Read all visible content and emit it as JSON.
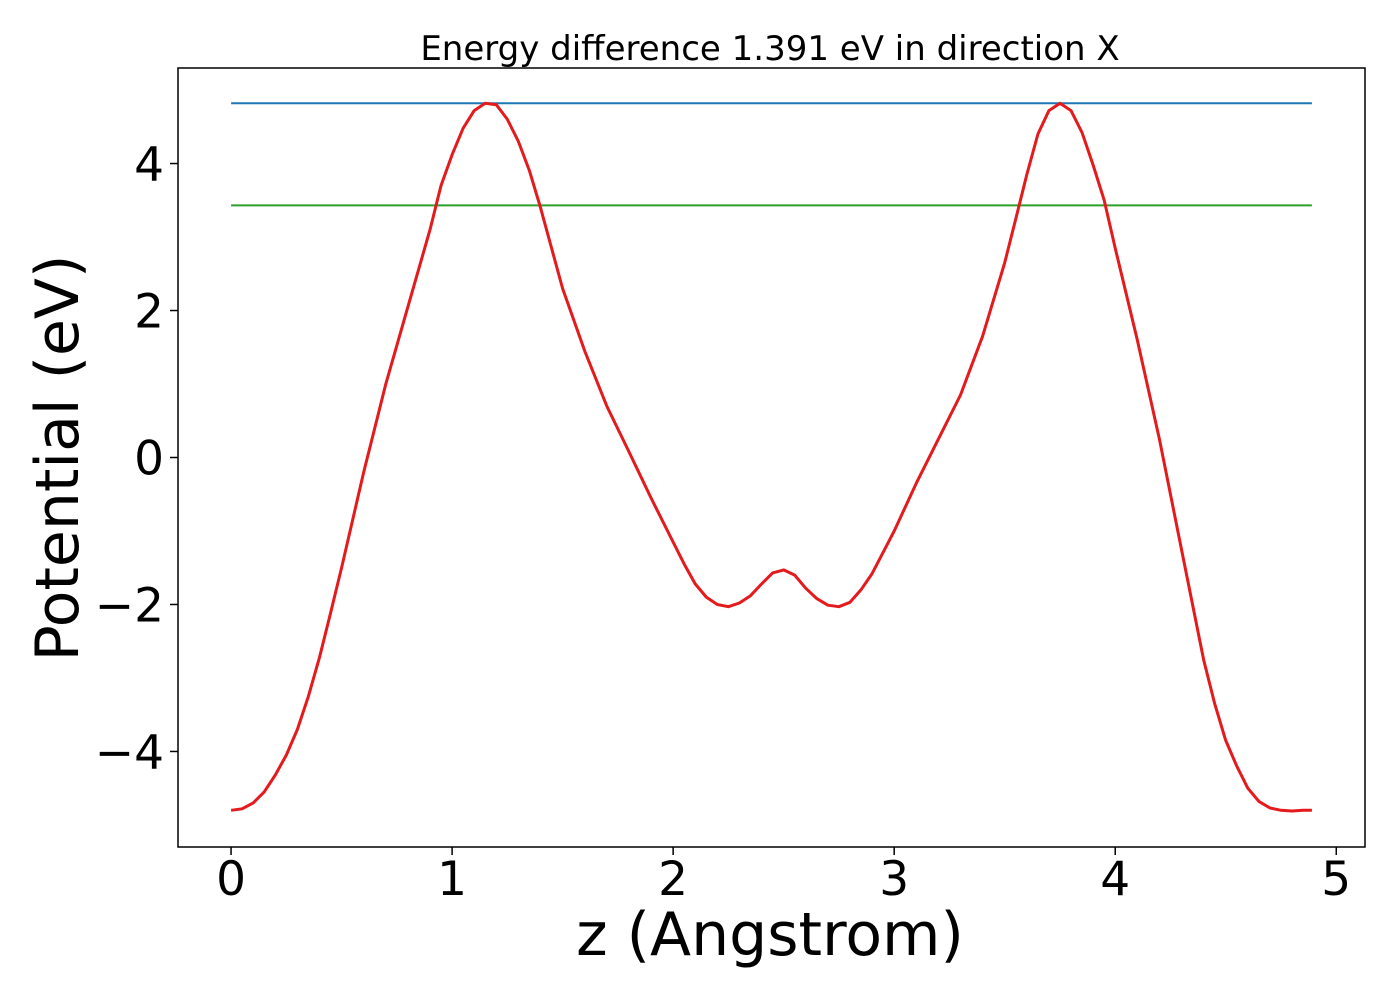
{
  "chart_data": {
    "type": "line",
    "title": "Energy difference 1.391 eV in direction X",
    "xlabel": "z (Angstrom)",
    "ylabel": "Potential (eV)",
    "xlim": [
      -0.24,
      5.13
    ],
    "ylim": [
      -5.3,
      5.3
    ],
    "xticks": [
      {
        "value": 0,
        "label": "0"
      },
      {
        "value": 1,
        "label": "1"
      },
      {
        "value": 2,
        "label": "2"
      },
      {
        "value": 3,
        "label": "3"
      },
      {
        "value": 4,
        "label": "4"
      },
      {
        "value": 5,
        "label": "5"
      }
    ],
    "yticks": [
      {
        "value": 4,
        "label": "4"
      },
      {
        "value": 2,
        "label": "2"
      },
      {
        "value": 0,
        "label": "0"
      },
      {
        "value": -2,
        "label": "−2"
      },
      {
        "value": -4,
        "label": "−4"
      }
    ],
    "grid": false,
    "series": [
      {
        "color": "#1f77b4",
        "x": [
          0,
          4.89
        ],
        "y": [
          4.82,
          4.82
        ]
      },
      {
        "color": "#2ca02c",
        "x": [
          0,
          4.89
        ],
        "y": [
          3.43,
          3.43
        ]
      },
      {
        "color": "#e41a1c",
        "x": [
          0.0,
          0.05,
          0.1,
          0.15,
          0.2,
          0.25,
          0.3,
          0.35,
          0.4,
          0.45,
          0.5,
          0.6,
          0.7,
          0.8,
          0.9,
          0.95,
          1.0,
          1.05,
          1.1,
          1.15,
          1.2,
          1.25,
          1.3,
          1.35,
          1.4,
          1.5,
          1.6,
          1.7,
          1.8,
          1.9,
          2.0,
          2.05,
          2.1,
          2.15,
          2.2,
          2.25,
          2.3,
          2.35,
          2.4,
          2.45,
          2.5,
          2.55,
          2.6,
          2.65,
          2.7,
          2.75,
          2.8,
          2.85,
          2.9,
          3.0,
          3.1,
          3.2,
          3.3,
          3.4,
          3.5,
          3.55,
          3.6,
          3.65,
          3.7,
          3.75,
          3.8,
          3.85,
          3.9,
          3.95,
          4.0,
          4.1,
          4.2,
          4.3,
          4.4,
          4.45,
          4.5,
          4.55,
          4.6,
          4.65,
          4.7,
          4.75,
          4.8,
          4.85,
          4.89
        ],
        "y": [
          -4.8,
          -4.78,
          -4.7,
          -4.55,
          -4.32,
          -4.05,
          -3.7,
          -3.25,
          -2.72,
          -2.12,
          -1.5,
          -0.2,
          1.0,
          2.05,
          3.1,
          3.7,
          4.12,
          4.48,
          4.72,
          4.82,
          4.8,
          4.6,
          4.3,
          3.9,
          3.4,
          2.3,
          1.45,
          0.7,
          0.08,
          -0.55,
          -1.15,
          -1.45,
          -1.72,
          -1.9,
          -2.0,
          -2.03,
          -1.98,
          -1.88,
          -1.72,
          -1.57,
          -1.53,
          -1.6,
          -1.78,
          -1.92,
          -2.01,
          -2.03,
          -1.97,
          -1.8,
          -1.58,
          -1.0,
          -0.35,
          0.25,
          0.85,
          1.65,
          2.65,
          3.25,
          3.85,
          4.4,
          4.72,
          4.82,
          4.72,
          4.42,
          3.98,
          3.5,
          2.85,
          1.6,
          0.25,
          -1.25,
          -2.75,
          -3.35,
          -3.85,
          -4.2,
          -4.5,
          -4.68,
          -4.77,
          -4.8,
          -4.81,
          -4.8,
          -4.8
        ]
      }
    ]
  }
}
